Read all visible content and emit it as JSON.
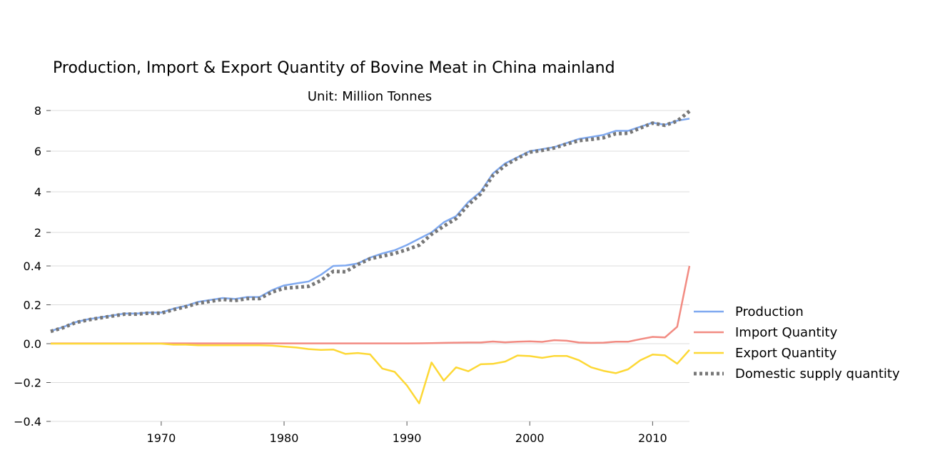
{
  "chart_data": {
    "type": "line",
    "title": "Production, Import & Export Quantity of Bovine Meat in China mainland",
    "subtitle": "Unit: Million Tonnes",
    "y_tick_labels": [
      "8",
      "6",
      "4",
      "2",
      "0.4",
      "0.2",
      "0.0",
      "−0.2",
      "−0.4"
    ],
    "x_ticks": [
      1970,
      1980,
      1990,
      2000,
      2010
    ],
    "xlim": [
      1961,
      2013
    ],
    "grid": true,
    "legend_position": "right",
    "x": [
      1961,
      1962,
      1963,
      1964,
      1965,
      1966,
      1967,
      1968,
      1969,
      1970,
      1971,
      1972,
      1973,
      1974,
      1975,
      1976,
      1977,
      1978,
      1979,
      1980,
      1981,
      1982,
      1983,
      1984,
      1985,
      1986,
      1987,
      1988,
      1989,
      1990,
      1991,
      1992,
      1993,
      1994,
      1995,
      1996,
      1997,
      1998,
      1999,
      2000,
      2001,
      2002,
      2003,
      2004,
      2005,
      2006,
      2007,
      2008,
      2009,
      2010,
      2011,
      2012,
      2013
    ],
    "series": [
      {
        "name": "Production",
        "color": "#7fa9f0",
        "dash": "solid",
        "values": [
          0.065,
          0.085,
          0.11,
          0.125,
          0.135,
          0.145,
          0.155,
          0.155,
          0.16,
          0.16,
          0.18,
          0.195,
          0.215,
          0.225,
          0.235,
          0.23,
          0.24,
          0.24,
          0.275,
          0.3,
          0.31,
          0.32,
          0.355,
          0.4,
          0.42,
          0.52,
          0.8,
          1.0,
          1.15,
          1.4,
          1.7,
          2.0,
          2.5,
          2.8,
          3.5,
          4.0,
          4.9,
          5.4,
          5.7,
          6.0,
          6.1,
          6.2,
          6.4,
          6.6,
          6.7,
          6.8,
          7.0,
          7.0,
          7.2,
          7.4,
          7.3,
          7.5,
          7.6
        ]
      },
      {
        "name": "Import Quantity",
        "color": "#f28b82",
        "dash": "solid",
        "values": [
          0.0015,
          0.0015,
          0.0015,
          0.0015,
          0.0015,
          0.0015,
          0.0015,
          0.0015,
          0.0015,
          0.0015,
          0.0015,
          0.0015,
          0.0015,
          0.0015,
          0.0015,
          0.0015,
          0.0015,
          0.0015,
          0.0015,
          0.0015,
          0.0015,
          0.0015,
          0.0015,
          0.0015,
          0.0015,
          0.0015,
          0.0015,
          0.0015,
          0.0015,
          0.0015,
          0.002,
          0.003,
          0.004,
          0.005,
          0.006,
          0.006,
          0.011,
          0.007,
          0.01,
          0.012,
          0.009,
          0.018,
          0.015,
          0.006,
          0.004,
          0.005,
          0.01,
          0.01,
          0.023,
          0.035,
          0.032,
          0.087,
          0.4
        ]
      },
      {
        "name": "Export Quantity",
        "color": "#fdd835",
        "dash": "solid",
        "values": [
          0,
          0,
          0,
          0,
          0,
          0,
          0,
          0,
          0,
          0,
          -0.005,
          -0.005,
          -0.008,
          -0.008,
          -0.008,
          -0.008,
          -0.008,
          -0.008,
          -0.01,
          -0.015,
          -0.02,
          -0.028,
          -0.032,
          -0.03,
          -0.053,
          -0.048,
          -0.055,
          -0.128,
          -0.145,
          -0.215,
          -0.307,
          -0.097,
          -0.19,
          -0.122,
          -0.142,
          -0.106,
          -0.104,
          -0.092,
          -0.061,
          -0.064,
          -0.073,
          -0.063,
          -0.063,
          -0.085,
          -0.122,
          -0.14,
          -0.152,
          -0.132,
          -0.085,
          -0.056,
          -0.06,
          -0.103,
          -0.032
        ]
      },
      {
        "name": "Domestic supply quantity",
        "color": "#777777",
        "dash": "dotted",
        "values": [
          0.063,
          0.082,
          0.108,
          0.122,
          0.132,
          0.142,
          0.152,
          0.152,
          0.157,
          0.157,
          0.175,
          0.19,
          0.208,
          0.218,
          0.228,
          0.222,
          0.232,
          0.232,
          0.265,
          0.285,
          0.29,
          0.295,
          0.325,
          0.372,
          0.37,
          0.47,
          0.745,
          0.87,
          1.0,
          1.18,
          1.39,
          1.91,
          2.31,
          2.68,
          3.36,
          3.9,
          4.8,
          5.3,
          5.65,
          5.95,
          6.04,
          6.16,
          6.35,
          6.52,
          6.58,
          6.66,
          6.86,
          6.88,
          7.14,
          7.38,
          7.27,
          7.48,
          7.97
        ]
      }
    ]
  }
}
